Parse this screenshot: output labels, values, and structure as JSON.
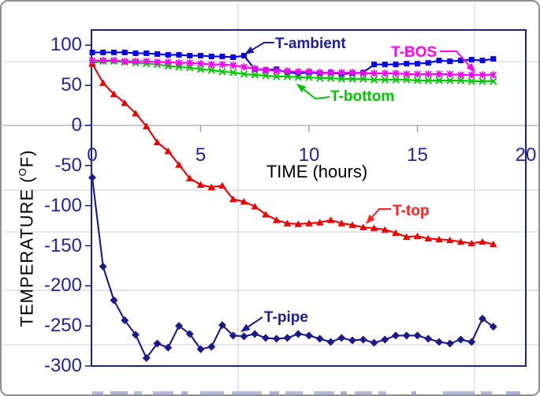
{
  "axes": {
    "x_title": "TIME (hours)",
    "y_title_prefix": "TEMPERATURE (",
    "y_title_sup": "O",
    "y_title_suffix": "F)"
  },
  "annotations": [
    {
      "label": "T-ambient",
      "color": "#1c1c9e"
    },
    {
      "label": "T-BOS",
      "color": "#ff00ff"
    },
    {
      "label": "T-bottom",
      "color": "#00c800"
    },
    {
      "label": "T-top",
      "color": "#ff2020"
    },
    {
      "label": "T-pipe",
      "color": "#1c1c9e"
    }
  ],
  "colors": {
    "plot_border": "#20208a",
    "axis_text": "#2222a2",
    "worksheet_gridline": "#d6d6de",
    "category_axis_line": "#b6b6c0",
    "category_axis_tick": "#9898a8"
  },
  "chart_data": {
    "type": "line",
    "title": "",
    "xlabel": "TIME (hours)",
    "ylabel": "TEMPERATURE (°F)",
    "xlim": [
      0,
      20
    ],
    "ylim": [
      -300,
      100
    ],
    "grid": false,
    "legend_position": "inline-annotations",
    "x_start": 0,
    "x_step": 0.5,
    "xticks": [
      0,
      5,
      10,
      15,
      20
    ],
    "yticks": [
      100,
      50,
      0,
      -50,
      -100,
      -150,
      -200,
      -250,
      -300
    ],
    "series": [
      {
        "name": "T-ambient",
        "color": "#0505e8",
        "marker": "square",
        "values": [
          91,
          91,
          91,
          91,
          90,
          90,
          89,
          88,
          88,
          87,
          87,
          86,
          86,
          85,
          87,
          70,
          69,
          70,
          66,
          65,
          66,
          65,
          66,
          64,
          65,
          66,
          76,
          76,
          76,
          77,
          77,
          78,
          81,
          80,
          81,
          82,
          81,
          83
        ]
      },
      {
        "name": "T-bottom",
        "color": "#00c800",
        "marker": "x",
        "values": [
          78,
          80,
          80,
          79,
          78,
          77,
          76,
          74,
          73,
          72,
          70,
          69,
          67,
          66,
          64,
          63,
          62,
          61,
          61,
          60,
          60,
          59,
          59,
          58,
          58,
          58,
          57,
          57,
          57,
          57,
          56,
          56,
          56,
          56,
          56,
          55,
          55,
          55
        ]
      },
      {
        "name": "T-top",
        "color": "#f00000",
        "marker": "triangle",
        "values": [
          77,
          53,
          39,
          28,
          15,
          -1,
          -21,
          -32,
          -49,
          -66,
          -74,
          -77,
          -75,
          -92,
          -95,
          -101,
          -111,
          -118,
          -122,
          -123,
          -122,
          -121,
          -118,
          -122,
          -124,
          -127,
          -128,
          -130,
          -134,
          -139,
          -138,
          -141,
          -142,
          -143,
          -145,
          -147,
          -145,
          -148
        ]
      },
      {
        "name": "T-BOS",
        "color": "#f800f8",
        "marker": "asterisk",
        "values": [
          81,
          81,
          81,
          80,
          80,
          80,
          79,
          79,
          78,
          78,
          77,
          76,
          76,
          75,
          73,
          71,
          69,
          68,
          68,
          67,
          67,
          66,
          66,
          66,
          66,
          65,
          65,
          65,
          65,
          64,
          64,
          64,
          64,
          64,
          63,
          63,
          63,
          63
        ]
      },
      {
        "name": "T-pipe",
        "color": "#1a1a8c",
        "marker": "diamond",
        "values": [
          -65,
          -176,
          -218,
          -243,
          -261,
          -290,
          -272,
          -277,
          -250,
          -260,
          -279,
          -276,
          -249,
          -262,
          -263,
          -260,
          -265,
          -266,
          -265,
          -260,
          -262,
          -266,
          -270,
          -265,
          -268,
          -267,
          -271,
          -267,
          -262,
          -262,
          -262,
          -266,
          -270,
          -272,
          -267,
          -270,
          -241,
          -251
        ]
      }
    ]
  }
}
